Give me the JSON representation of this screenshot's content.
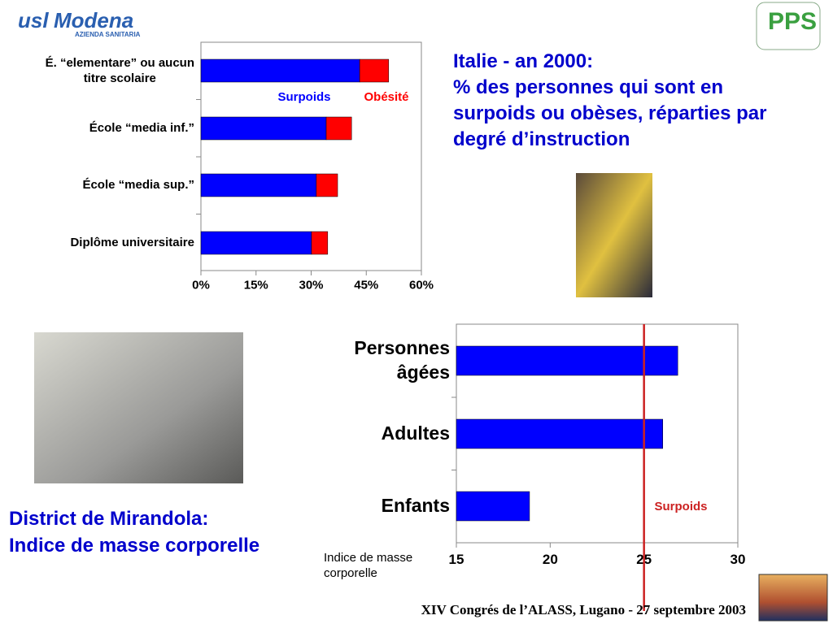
{
  "logo": {
    "usl": "usl",
    "modena": "Modena",
    "subtitle": "AZIENDA SANITARIA",
    "pps": "PPS"
  },
  "footer": "XIV Congrés de l’ALASS, Lugano - 27 septembre 2003",
  "chart_data": [
    {
      "type": "stacked-barh",
      "title": "Italie - an 2000:\n% des personnes qui sont en surpoids ou obèses, réparties par degré d’instruction",
      "categories": [
        "É. “elementare” ou aucun\ntitre scolaire",
        "École “media inf.”",
        "École “media sup.”",
        "Diplôme universitaire"
      ],
      "series": [
        {
          "name": "Surpoids",
          "color": "#0000ff",
          "values": [
            43.2,
            34.1,
            31.4,
            30.1
          ]
        },
        {
          "name": "Obésité",
          "color": "#ff0000",
          "values": [
            7.9,
            6.9,
            5.8,
            4.4
          ]
        }
      ],
      "xlim": [
        0,
        60
      ],
      "xticks": [
        {
          "value": 0,
          "label": "0%"
        },
        {
          "value": 15,
          "label": "15%"
        },
        {
          "value": 30,
          "label": "30%"
        },
        {
          "value": 45,
          "label": "45%"
        },
        {
          "value": 60,
          "label": "60%"
        }
      ],
      "grid": false
    },
    {
      "type": "barh",
      "title": "District de Mirandola:\nIndice de masse corporelle",
      "x_label": "Indice de masse\ncorporelle",
      "categories": [
        "Personnes\nâgées",
        "Adultes",
        "Enfants"
      ],
      "values": [
        26.8,
        26.0,
        18.9
      ],
      "color": "#0000ff",
      "xlim": [
        15,
        30
      ],
      "xticks": [
        15,
        20,
        25,
        30
      ],
      "reference_line": {
        "value": 25,
        "label": "Surpoids",
        "color": "#cc2222"
      },
      "grid": false
    }
  ]
}
